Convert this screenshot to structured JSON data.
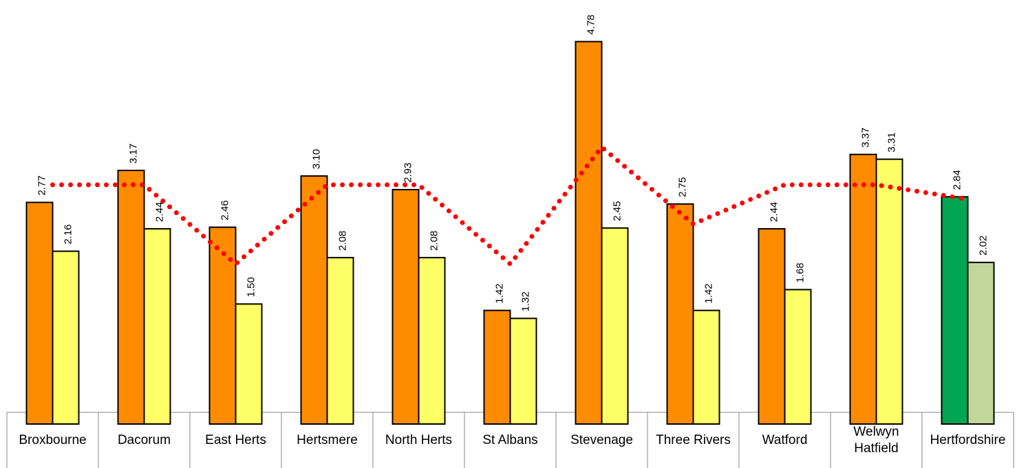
{
  "chart_data": {
    "type": "bar",
    "categories": [
      "Broxbourne",
      "Dacorum",
      "East Herts",
      "Hertsmere",
      "North Herts",
      "St Albans",
      "Stevenage",
      "Three Rivers",
      "Watford",
      "Welwyn Hatfield",
      "Hertfordshire"
    ],
    "ylim": [
      0,
      5.3
    ],
    "series": [
      {
        "type": "bar",
        "color": "#ff8c00",
        "colors": [
          "#ff8c00",
          "#ff8c00",
          "#ff8c00",
          "#ff8c00",
          "#ff8c00",
          "#ff8c00",
          "#ff8c00",
          "#ff8c00",
          "#ff8c00",
          "#ff8c00",
          "#00a651"
        ],
        "values": [
          2.77,
          3.17,
          2.46,
          3.1,
          2.93,
          1.42,
          4.78,
          2.75,
          2.44,
          3.37,
          2.84
        ],
        "value_labels": [
          "2.77",
          "3.17",
          "2.46",
          "3.10",
          "2.93",
          "1.42",
          "4.78",
          "2.75",
          "2.44",
          "3.37",
          "2.84"
        ]
      },
      {
        "type": "bar",
        "color": "#ffff66",
        "colors": [
          "#ffff66",
          "#ffff66",
          "#ffff66",
          "#ffff66",
          "#ffff66",
          "#ffff66",
          "#ffff66",
          "#ffff66",
          "#ffff66",
          "#ffff66",
          "#c3d69b"
        ],
        "values": [
          2.16,
          2.44,
          1.5,
          2.08,
          2.08,
          1.32,
          2.45,
          1.42,
          1.68,
          3.31,
          2.02
        ],
        "value_labels": [
          "2.16",
          "2.44",
          "1.50",
          "2.08",
          "2.08",
          "1.32",
          "2.45",
          "1.42",
          "1.68",
          "3.31",
          "2.02"
        ]
      },
      {
        "type": "line",
        "color": "#ff0000",
        "style": "dotted",
        "values": [
          2.99,
          2.99,
          2.0,
          2.99,
          2.99,
          2.0,
          3.46,
          2.5,
          2.99,
          2.99,
          2.81
        ]
      }
    ]
  }
}
